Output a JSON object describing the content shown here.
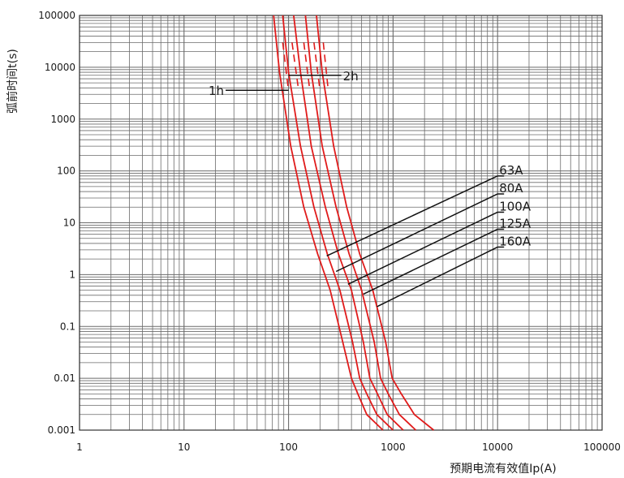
{
  "chart_data": {
    "type": "line",
    "xlabel": "预期电流有效值Ip(A)",
    "ylabel": "弧前时间t(s)",
    "x_scale": "log",
    "y_scale": "log",
    "xlim": [
      1,
      100000
    ],
    "ylim": [
      0.001,
      100000
    ],
    "grid": true,
    "x_tick_labels": [
      "1",
      "10",
      "100",
      "1000",
      "10000",
      "100000"
    ],
    "y_tick_labels": [
      "0.001",
      "0.01",
      "0.1",
      "1",
      "10",
      "100",
      "1000",
      "10000",
      "100000"
    ],
    "line_color": "#e01b1b",
    "series": [
      {
        "name": "63A",
        "points": [
          [
            72,
            100000
          ],
          [
            82,
            8000
          ],
          [
            105,
            300
          ],
          [
            140,
            20
          ],
          [
            190,
            2.5
          ],
          [
            250,
            0.5
          ],
          [
            330,
            0.05
          ],
          [
            400,
            0.01
          ],
          [
            460,
            0.005
          ],
          [
            560,
            0.002
          ],
          [
            800,
            0.001
          ]
        ]
      },
      {
        "name": "80A",
        "points": [
          [
            88,
            100000
          ],
          [
            100,
            8000
          ],
          [
            130,
            300
          ],
          [
            175,
            20
          ],
          [
            235,
            2.5
          ],
          [
            310,
            0.5
          ],
          [
            410,
            0.05
          ],
          [
            480,
            0.01
          ],
          [
            560,
            0.005
          ],
          [
            700,
            0.002
          ],
          [
            1000,
            0.001
          ]
        ]
      },
      {
        "name": "100A",
        "points": [
          [
            112,
            100000
          ],
          [
            130,
            8000
          ],
          [
            165,
            300
          ],
          [
            225,
            20
          ],
          [
            300,
            2.5
          ],
          [
            400,
            0.5
          ],
          [
            520,
            0.05
          ],
          [
            600,
            0.01
          ],
          [
            710,
            0.005
          ],
          [
            880,
            0.002
          ],
          [
            1250,
            0.001
          ]
        ]
      },
      {
        "name": "125A",
        "points": [
          [
            145,
            100000
          ],
          [
            165,
            8000
          ],
          [
            210,
            300
          ],
          [
            285,
            20
          ],
          [
            380,
            2.5
          ],
          [
            500,
            0.5
          ],
          [
            660,
            0.05
          ],
          [
            760,
            0.01
          ],
          [
            900,
            0.005
          ],
          [
            1150,
            0.002
          ],
          [
            1650,
            0.001
          ]
        ]
      },
      {
        "name": "160A",
        "points": [
          [
            185,
            100000
          ],
          [
            210,
            8000
          ],
          [
            270,
            300
          ],
          [
            360,
            20
          ],
          [
            480,
            2.5
          ],
          [
            640,
            0.5
          ],
          [
            850,
            0.05
          ],
          [
            980,
            0.01
          ],
          [
            1200,
            0.005
          ],
          [
            1600,
            0.002
          ],
          [
            2450,
            0.001
          ]
        ]
      }
    ],
    "dashed_segments": [
      {
        "points": [
          [
            88,
            30000
          ],
          [
            100,
            3500
          ]
        ]
      },
      {
        "points": [
          [
            108,
            30000
          ],
          [
            125,
            3500
          ]
        ]
      },
      {
        "points": [
          [
            140,
            30000
          ],
          [
            160,
            3500
          ]
        ]
      },
      {
        "points": [
          [
            175,
            30000
          ],
          [
            200,
            3500
          ]
        ]
      },
      {
        "points": [
          [
            215,
            30000
          ],
          [
            240,
            3500
          ]
        ]
      }
    ],
    "annotations": [
      {
        "text": "2h",
        "line_from": [
          100,
          7000
        ],
        "line_to": [
          320,
          7000
        ]
      },
      {
        "text": "1h",
        "line_from": [
          100,
          3600
        ],
        "line_to": [
          25,
          3600
        ]
      },
      {
        "text": "63A",
        "target": [
          232,
          2.3
        ],
        "label_at": [
          10000,
          80
        ]
      },
      {
        "text": "80A",
        "target": [
          285,
          1.15
        ],
        "label_at": [
          10000,
          36
        ]
      },
      {
        "text": "100A",
        "target": [
          370,
          0.65
        ],
        "label_at": [
          10000,
          16
        ]
      },
      {
        "text": "125A",
        "target": [
          520,
          0.42
        ],
        "label_at": [
          10000,
          7.5
        ]
      },
      {
        "text": "160A",
        "target": [
          700,
          0.24
        ],
        "label_at": [
          10000,
          3.4
        ]
      }
    ]
  }
}
